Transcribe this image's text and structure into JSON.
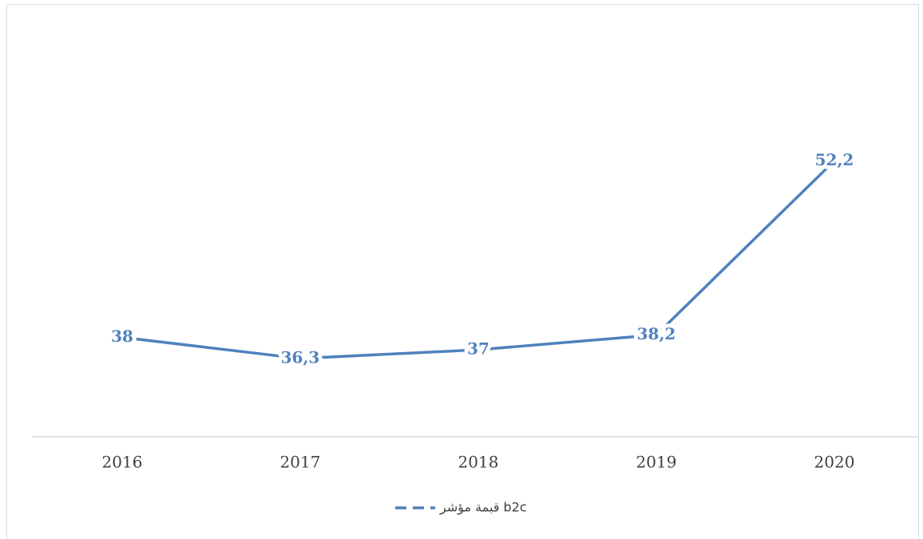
{
  "chart_data": {
    "type": "line",
    "categories": [
      "2016",
      "2017",
      "2018",
      "2019",
      "2020"
    ],
    "series": [
      {
        "name": "قبمة مؤشر b2c",
        "color": "#4f81bd",
        "values": [
          38,
          36.3,
          37,
          38.2,
          52.2
        ],
        "value_labels": [
          "38",
          "36,3",
          "37",
          "38,2",
          "52,2"
        ]
      }
    ],
    "ylim": [
      30,
      60
    ],
    "legend": "bottom"
  }
}
